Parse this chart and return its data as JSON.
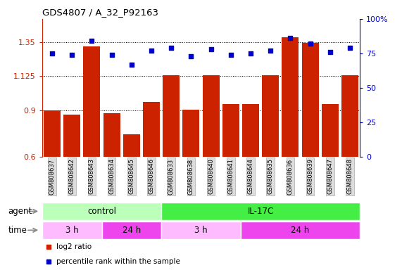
{
  "title": "GDS4807 / A_32_P92163",
  "samples": [
    "GSM808637",
    "GSM808642",
    "GSM808643",
    "GSM808634",
    "GSM808645",
    "GSM808646",
    "GSM808633",
    "GSM808638",
    "GSM808640",
    "GSM808641",
    "GSM808644",
    "GSM808635",
    "GSM808636",
    "GSM808639",
    "GSM808647",
    "GSM808648"
  ],
  "log2_ratios": [
    0.9,
    0.875,
    1.32,
    0.885,
    0.745,
    0.955,
    1.13,
    0.905,
    1.13,
    0.945,
    0.945,
    1.13,
    1.38,
    1.345,
    0.945,
    1.13
  ],
  "percentile_ranks": [
    75,
    74,
    84,
    74,
    67,
    77,
    79,
    73,
    78,
    74,
    75,
    77,
    86,
    82,
    76,
    79
  ],
  "bar_color": "#cc2200",
  "dot_color": "#0000cc",
  "ylim_left": [
    0.6,
    1.5
  ],
  "ylim_right": [
    0,
    100
  ],
  "yticks_left": [
    0.6,
    0.9,
    1.125,
    1.35
  ],
  "yticks_right": [
    0,
    25,
    50,
    75,
    100
  ],
  "ytick_labels_left": [
    "0.6",
    "0.9",
    "1.125",
    "1.35"
  ],
  "ytick_labels_right": [
    "0",
    "25",
    "50",
    "75",
    "100%"
  ],
  "hlines": [
    0.9,
    1.125,
    1.35
  ],
  "agent_groups": [
    {
      "label": "control",
      "start": 0,
      "end": 6,
      "color": "#bbffbb"
    },
    {
      "label": "IL-17C",
      "start": 6,
      "end": 16,
      "color": "#44ee44"
    }
  ],
  "time_groups": [
    {
      "label": "3 h",
      "start": 0,
      "end": 3,
      "color": "#ffbbff"
    },
    {
      "label": "24 h",
      "start": 3,
      "end": 6,
      "color": "#ee44ee"
    },
    {
      "label": "3 h",
      "start": 6,
      "end": 10,
      "color": "#ffbbff"
    },
    {
      "label": "24 h",
      "start": 10,
      "end": 16,
      "color": "#ee44ee"
    }
  ],
  "legend_items": [
    {
      "label": "log2 ratio",
      "color": "#cc2200"
    },
    {
      "label": "percentile rank within the sample",
      "color": "#0000cc"
    }
  ],
  "agent_label": "agent",
  "time_label": "time",
  "tick_box_color": "#dddddd",
  "tick_box_edge": "#aaaaaa"
}
